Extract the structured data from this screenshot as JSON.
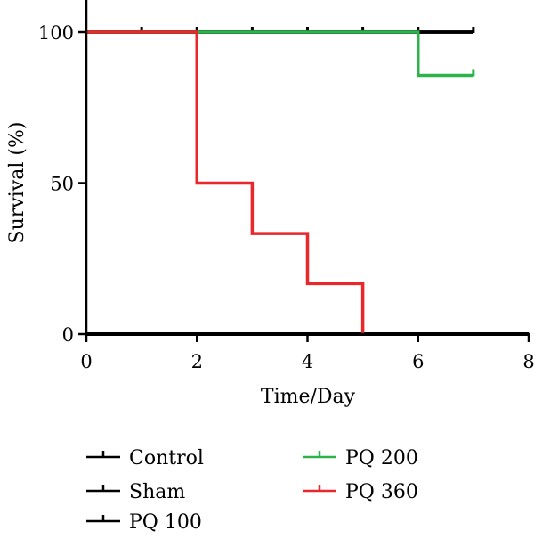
{
  "chart_data": {
    "type": "line",
    "subtype": "kaplan-meier step",
    "xlabel": "Time/Day",
    "ylabel": "Survival (%)",
    "xlim": [
      0,
      8
    ],
    "ylim": [
      0,
      100
    ],
    "xticks": [
      0,
      2,
      4,
      6,
      8
    ],
    "yticks": [
      0,
      50,
      100
    ],
    "grid": false,
    "legend_position": "bottom",
    "series": [
      {
        "name": "Control",
        "color": "#000000",
        "steps": [
          [
            0,
            100
          ],
          [
            7,
            100
          ]
        ],
        "censor_marks": [
          1,
          2,
          3,
          4,
          5,
          6,
          7
        ]
      },
      {
        "name": "Sham",
        "color": "#000000",
        "steps": [
          [
            0,
            100
          ],
          [
            7,
            100
          ]
        ],
        "censor_marks": []
      },
      {
        "name": "PQ 100",
        "color": "#000000",
        "steps": [
          [
            0,
            100
          ],
          [
            7,
            100
          ]
        ],
        "censor_marks": []
      },
      {
        "name": "PQ 200",
        "color": "#2db34a",
        "steps": [
          [
            0,
            100
          ],
          [
            6,
            100
          ],
          [
            6,
            85.7
          ],
          [
            7,
            85.7
          ]
        ],
        "censor_marks": [
          7
        ]
      },
      {
        "name": "PQ 360",
        "color": "#e8282b",
        "steps": [
          [
            0,
            100
          ],
          [
            2,
            100
          ],
          [
            2,
            50
          ],
          [
            3,
            50
          ],
          [
            3,
            33.3
          ],
          [
            4,
            33.3
          ],
          [
            4,
            16.7
          ],
          [
            5,
            16.7
          ],
          [
            5,
            0
          ]
        ],
        "censor_marks": []
      }
    ],
    "extra_line": {
      "color": "#000000",
      "steps": [
        [
          0,
          0
        ],
        [
          8,
          0
        ]
      ]
    }
  }
}
